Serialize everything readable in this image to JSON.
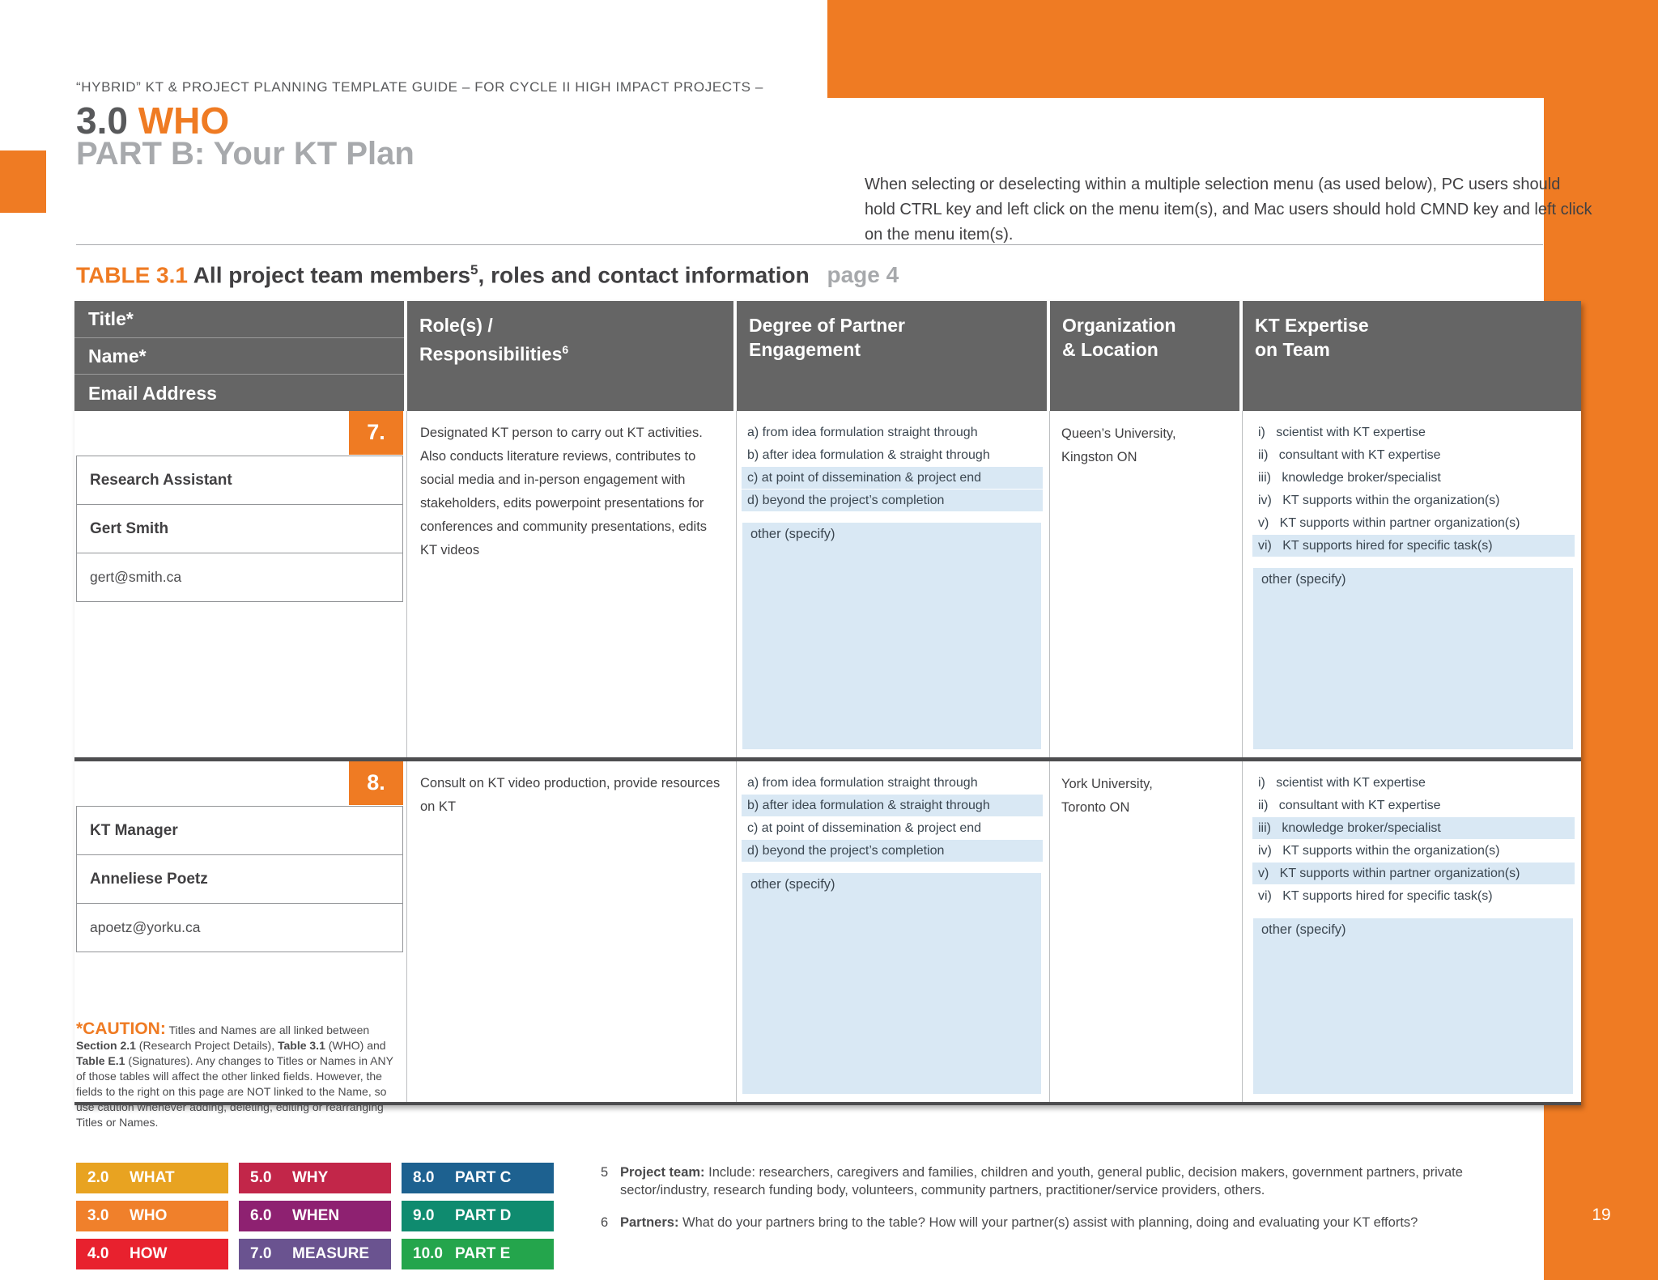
{
  "colors": {
    "accent_orange": "#EF7B23",
    "table_header_gray": "#656565",
    "selection_highlight_blue": "#D9E8F4",
    "row_divider_dark": "#4D4D4F"
  },
  "header": {
    "eyebrow": "“HYBRID” KT & PROJECT PLANNING TEMPLATE GUIDE – FOR CYCLE II HIGH IMPACT PROJECTS –",
    "section_number": "3.0",
    "section_name": "WHO",
    "subtitle": "PART B: Your KT Plan",
    "note": "When selecting or deselecting within a multiple selection menu (as used below), PC users should hold CTRL key and left click on the menu item(s), and Mac users should hold CMND key and left click on the menu item(s)."
  },
  "table": {
    "title_label": "TABLE 3.1",
    "title_text": "All project team members",
    "title_sup": "5",
    "title_rest": ", roles and contact information",
    "title_page": "page 4",
    "other_label": "other (specify)",
    "columns": {
      "title": "Title*",
      "name": "Name*",
      "email": "Email Address",
      "role_line1": "Role(s) /",
      "role_line2": "Responsibilities",
      "role_sup": "6",
      "engagement_line1": "Degree of Partner",
      "engagement_line2": "Engagement",
      "org_line1": "Organization",
      "org_line2": "& Location",
      "expertise_line1": "KT Expertise",
      "expertise_line2": "on Team"
    },
    "rows": [
      {
        "number": "7.",
        "title": "Research Assistant",
        "name": "Gert Smith",
        "email": "gert@smith.ca",
        "role": "Designated KT person to carry out KT activities. Also conducts literature reviews, contributes to social media and in-person engagement with stakeholders, edits powerpoint presentations for conferences and community presentations, edits KT videos",
        "engagement": [
          {
            "label": "a) from idea formulation straight through",
            "selected": false
          },
          {
            "label": "b) after idea formulation & straight through",
            "selected": false
          },
          {
            "label": "c) at point of dissemination & project end",
            "selected": true
          },
          {
            "label": "d) beyond the project’s completion",
            "selected": true
          }
        ],
        "organization": "Queen’s University,\nKingston ON",
        "expertise": [
          {
            "label": "i)   scientist with KT expertise",
            "selected": false
          },
          {
            "label": "ii)   consultant with KT expertise",
            "selected": false
          },
          {
            "label": "iii)   knowledge broker/specialist",
            "selected": false
          },
          {
            "label": "iv)   KT supports within the organization(s)",
            "selected": false
          },
          {
            "label": "v)   KT supports within partner organization(s)",
            "selected": false
          },
          {
            "label": "vi)   KT supports hired for specific task(s)",
            "selected": true
          }
        ]
      },
      {
        "number": "8.",
        "title": "KT Manager",
        "name": "Anneliese Poetz",
        "email": "apoetz@yorku.ca",
        "role": "Consult on KT video production, provide resources on KT",
        "engagement": [
          {
            "label": "a) from idea formulation straight through",
            "selected": false
          },
          {
            "label": "b) after idea formulation & straight through",
            "selected": true
          },
          {
            "label": "c) at point of dissemination & project end",
            "selected": false
          },
          {
            "label": "d) beyond the project’s completion",
            "selected": true
          }
        ],
        "organization": "York University,\nToronto ON",
        "expertise": [
          {
            "label": "i)   scientist with KT expertise",
            "selected": false
          },
          {
            "label": "ii)   consultant with KT expertise",
            "selected": false
          },
          {
            "label": "iii)   knowledge broker/specialist",
            "selected": true
          },
          {
            "label": "iv)   KT supports within the organization(s)",
            "selected": false
          },
          {
            "label": "v)   KT supports within partner organization(s)",
            "selected": true
          },
          {
            "label": "vi)   KT supports hired for specific task(s)",
            "selected": false
          }
        ]
      }
    ]
  },
  "caution": {
    "title": "*CAUTION:",
    "seg1": " Titles and Names are all linked between ",
    "bold1": "Section 2.1",
    "seg2": " (Research Project Details), ",
    "bold2": "Table 3.1",
    "seg3": " (WHO) and ",
    "bold3": "Table E.1",
    "seg4": " (Signatures). Any changes to Titles or Names in ANY of those tables will affect the other linked fields. However, the fields to the right on this page are NOT linked to the Name, so use caution whenever adding, deleting, editing or rearranging Titles or Names."
  },
  "nav": {
    "buttons": [
      {
        "num": "2.0",
        "label": "WHAT",
        "color": "#E8A321"
      },
      {
        "num": "3.0",
        "label": "WHO",
        "color": "#F0802B"
      },
      {
        "num": "4.0",
        "label": "HOW",
        "color": "#E8212E"
      },
      {
        "num": "5.0",
        "label": "WHY",
        "color": "#C22649"
      },
      {
        "num": "6.0",
        "label": "WHEN",
        "color": "#8E2171"
      },
      {
        "num": "7.0",
        "label": "MEASURE",
        "color": "#6A5390"
      },
      {
        "num": "8.0",
        "label": "PART C",
        "color": "#1D6190"
      },
      {
        "num": "9.0",
        "label": "PART D",
        "color": "#0F8B6F"
      },
      {
        "num": "10.0",
        "label": "PART E",
        "color": "#24A54C"
      }
    ]
  },
  "footnotes": [
    {
      "num": "5",
      "bold": "Project team:",
      "text": " Include: researchers, caregivers and families, children and youth, general public, decision makers, government partners, private sector/industry, research funding body, volunteers, community partners, practitioner/service providers, others."
    },
    {
      "num": "6",
      "bold": "Partners:",
      "text": " What do your partners bring to the table? How will your partner(s) assist with planning, doing and evaluating your KT efforts?"
    }
  ],
  "page": {
    "number": "19"
  }
}
